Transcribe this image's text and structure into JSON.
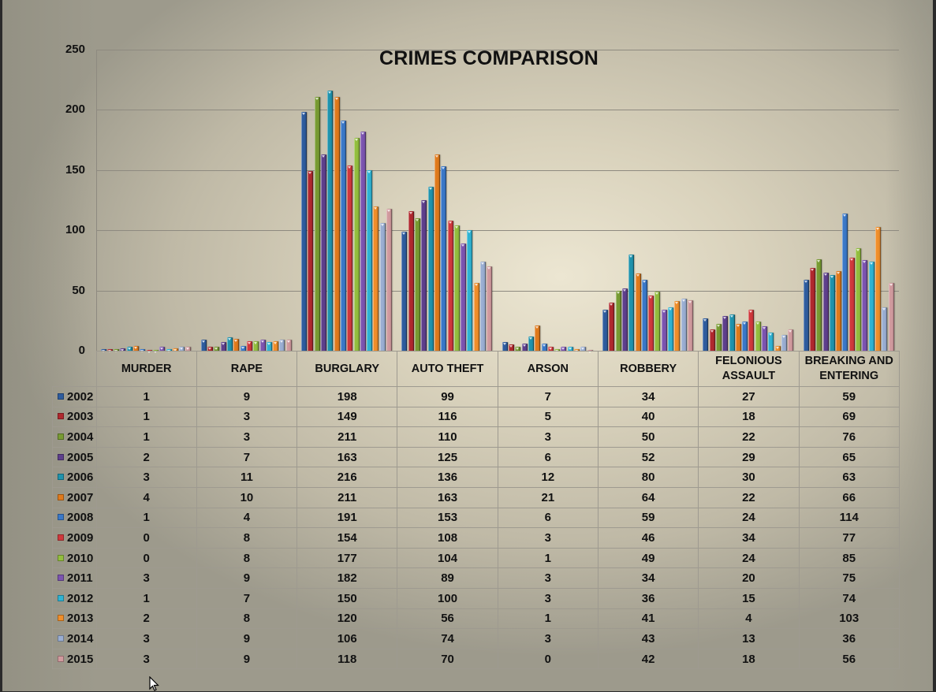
{
  "chart_data": {
    "type": "bar",
    "title": "CRIMES COMPARISON",
    "xlabel": "",
    "ylabel": "",
    "ylim": [
      0,
      250
    ],
    "yticks": [
      0,
      50,
      100,
      150,
      200,
      250
    ],
    "grid": true,
    "legend_position": "data-table-left",
    "categories": [
      "MURDER",
      "RAPE",
      "BURGLARY",
      "AUTO THEFT",
      "ARSON",
      "ROBBERY",
      "FELONIOUS ASSAULT",
      "BREAKING AND ENTERING"
    ],
    "category_lines": [
      [
        "MURDER"
      ],
      [
        "RAPE"
      ],
      [
        "BURGLARY"
      ],
      [
        "AUTO THEFT"
      ],
      [
        "ARSON"
      ],
      [
        "ROBBERY"
      ],
      [
        "FELONIOUS",
        "ASSAULT"
      ],
      [
        "BREAKING AND",
        "ENTERING"
      ]
    ],
    "series": [
      {
        "name": "2002",
        "color": "#2e5c9e",
        "values": [
          1,
          9,
          198,
          99,
          7,
          34,
          27,
          59
        ]
      },
      {
        "name": "2003",
        "color": "#b0282e",
        "values": [
          1,
          3,
          149,
          116,
          5,
          40,
          18,
          69
        ]
      },
      {
        "name": "2004",
        "color": "#789b32",
        "values": [
          1,
          3,
          211,
          110,
          3,
          50,
          22,
          76
        ]
      },
      {
        "name": "2005",
        "color": "#5e3f8c",
        "values": [
          2,
          7,
          163,
          125,
          6,
          52,
          29,
          65
        ]
      },
      {
        "name": "2006",
        "color": "#1f93ad",
        "values": [
          3,
          11,
          216,
          136,
          12,
          80,
          30,
          63
        ]
      },
      {
        "name": "2007",
        "color": "#e07a1c",
        "values": [
          4,
          10,
          211,
          163,
          21,
          64,
          22,
          66
        ]
      },
      {
        "name": "2008",
        "color": "#3a78c8",
        "values": [
          1,
          4,
          191,
          153,
          6,
          59,
          24,
          114
        ]
      },
      {
        "name": "2009",
        "color": "#d0383c",
        "values": [
          0,
          8,
          154,
          108,
          3,
          46,
          34,
          77
        ]
      },
      {
        "name": "2010",
        "color": "#93be3e",
        "values": [
          0,
          8,
          177,
          104,
          1,
          49,
          24,
          85
        ]
      },
      {
        "name": "2011",
        "color": "#7c54b0",
        "values": [
          3,
          9,
          182,
          89,
          3,
          34,
          20,
          75
        ]
      },
      {
        "name": "2012",
        "color": "#2fb3d3",
        "values": [
          1,
          7,
          150,
          100,
          3,
          36,
          15,
          74
        ]
      },
      {
        "name": "2013",
        "color": "#f08e2a",
        "values": [
          2,
          8,
          120,
          56,
          1,
          41,
          4,
          103
        ]
      },
      {
        "name": "2014",
        "color": "#9aaed2",
        "values": [
          3,
          9,
          106,
          74,
          3,
          43,
          13,
          36
        ]
      },
      {
        "name": "2015",
        "color": "#d19a9e",
        "values": [
          3,
          9,
          118,
          70,
          0,
          42,
          18,
          56
        ]
      }
    ]
  }
}
